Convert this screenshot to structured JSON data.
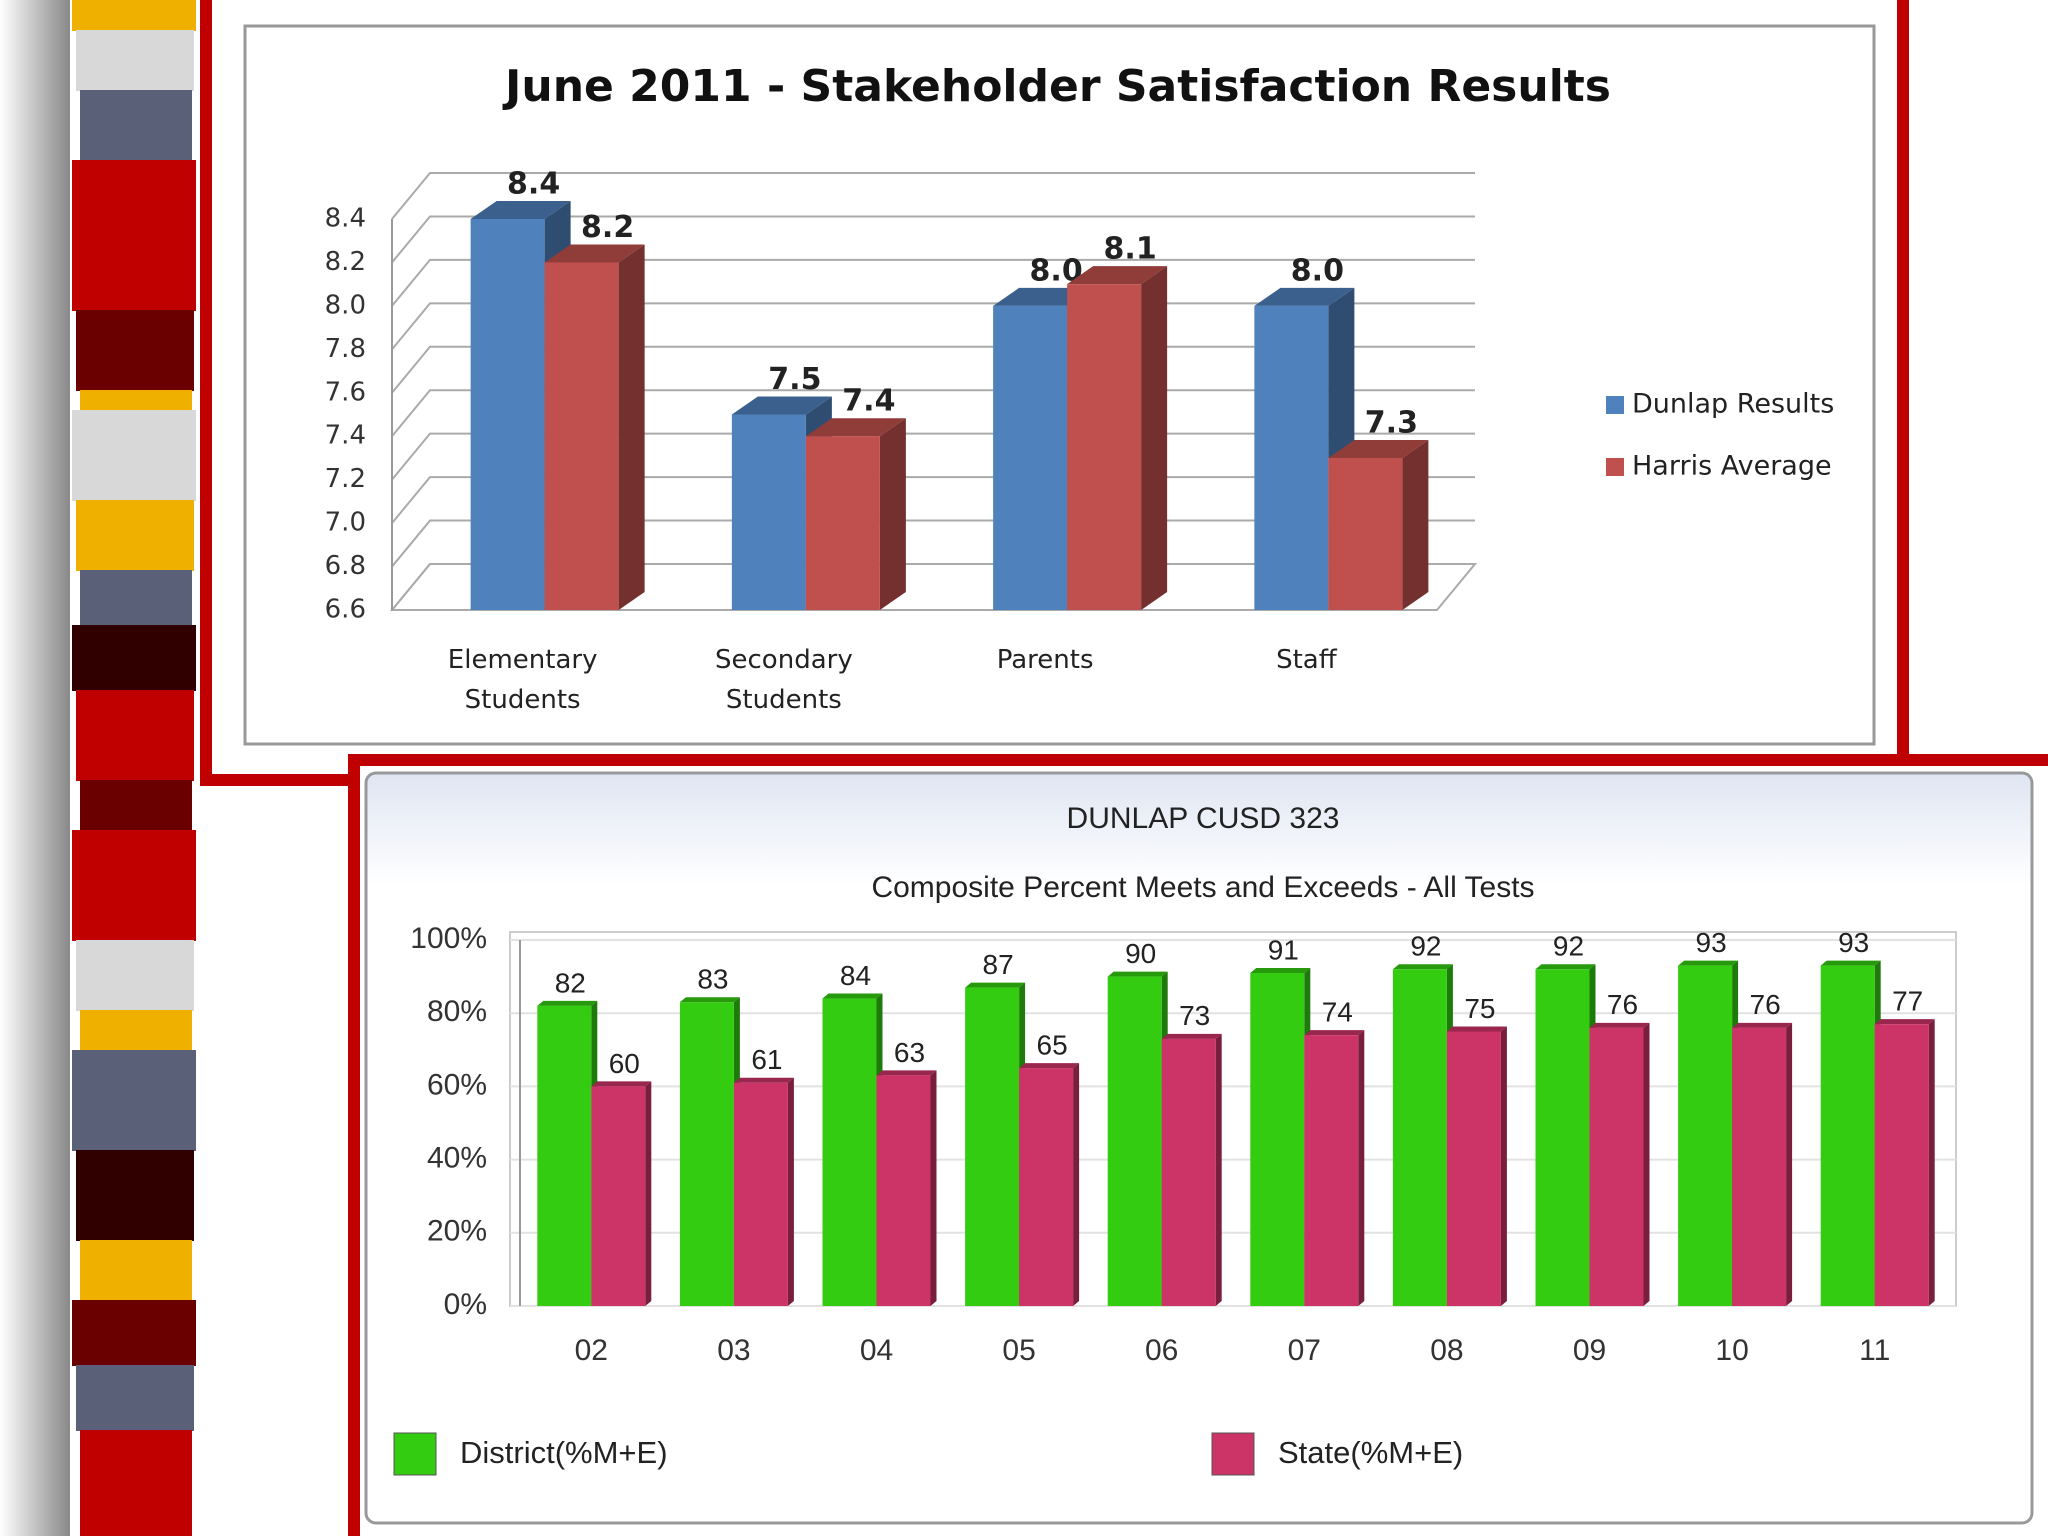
{
  "chart_data": [
    {
      "type": "bar",
      "title": "June 2011 - Stakeholder Satisfaction Results",
      "categories": [
        "Elementary Students",
        "Secondary Students",
        "Parents",
        "Staff"
      ],
      "series": [
        {
          "name": "Dunlap Results",
          "color": "#4f81bd",
          "values": [
            8.4,
            7.5,
            8.0,
            8.0
          ],
          "value_labels": [
            "8.4",
            "7.5",
            "8.0",
            "8.0"
          ]
        },
        {
          "name": "Harris Average",
          "color": "#c0504d",
          "values": [
            8.2,
            7.4,
            8.1,
            7.3
          ],
          "value_labels": [
            "8.2",
            "7.4",
            "8.1",
            "7.3"
          ]
        }
      ],
      "ylim": [
        6.6,
        8.4
      ],
      "yticks": [
        6.6,
        6.8,
        {
          "value": 7,
          "label": "7.0"
        },
        7.2,
        7.4,
        7.6,
        7.8,
        {
          "value": 8,
          "label": "8.0"
        },
        8.2,
        8.4
      ],
      "grid": true,
      "legend": "right"
    },
    {
      "type": "bar",
      "title": "DUNLAP CUSD 323",
      "subtitle": "Composite Percent Meets and Exceeds - All Tests",
      "categories": [
        "02",
        "03",
        "04",
        "05",
        "06",
        "07",
        "08",
        "09",
        "10",
        "11"
      ],
      "series": [
        {
          "name": "District(%M+E)",
          "color": "#33cc11",
          "values": [
            82,
            83,
            84,
            87,
            90,
            91,
            92,
            92,
            93,
            93
          ]
        },
        {
          "name": "State(%M+E)",
          "color": "#cc3366",
          "values": [
            60,
            61,
            63,
            65,
            73,
            74,
            75,
            76,
            76,
            77
          ]
        }
      ],
      "ylim": [
        0,
        100
      ],
      "yticks": [
        {
          "value": 0,
          "label": "0%"
        },
        {
          "value": 20,
          "label": "20%"
        },
        {
          "value": 40,
          "label": "40%"
        },
        {
          "value": 60,
          "label": "60%"
        },
        {
          "value": 80,
          "label": "80%"
        },
        {
          "value": 100,
          "label": "100%"
        }
      ],
      "grid": true,
      "legend": "bottom"
    }
  ]
}
